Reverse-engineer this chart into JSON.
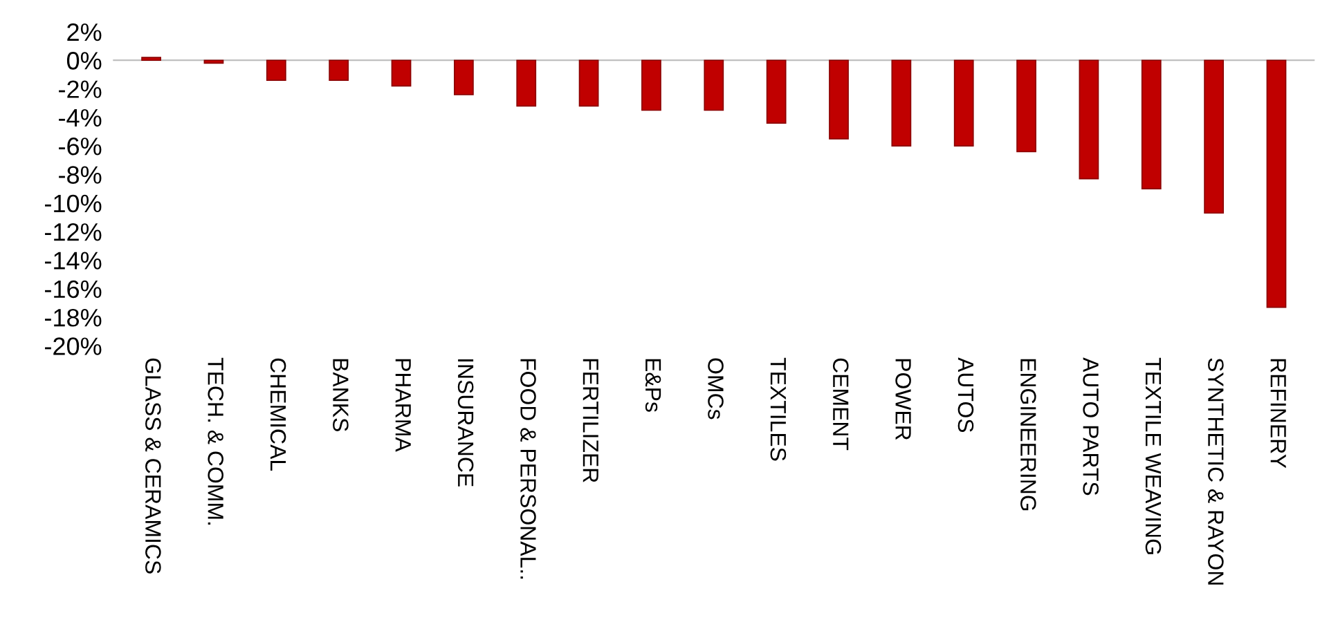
{
  "chart_data": {
    "type": "bar",
    "categories": [
      "GLASS & CERAMICS",
      "TECH. & COMM.",
      "CHEMICAL",
      "BANKS",
      "PHARMA",
      "INSURANCE",
      "FOOD & PERSONAL..",
      "FERTILIZER",
      "E&Ps",
      "OMCs",
      "TEXTILES",
      "CEMENT",
      "POWER",
      "AUTOS",
      "ENGINEERING",
      "AUTO PARTS",
      "TEXTILE WEAVING",
      "SYNTHETIC & RAYON",
      "REFINERY"
    ],
    "values": [
      0.2,
      -0.2,
      -1.4,
      -1.4,
      -1.8,
      -2.4,
      -3.2,
      -3.2,
      -3.5,
      -3.5,
      -4.4,
      -5.5,
      -6.0,
      -6.0,
      -6.4,
      -8.3,
      -9.0,
      -10.7,
      -17.3
    ],
    "color": "#c00000",
    "ylim": [
      -20,
      2
    ],
    "yticks": [
      {
        "value": 2,
        "label": "2%"
      },
      {
        "value": 0,
        "label": "0%"
      },
      {
        "value": -2,
        "label": "-2%"
      },
      {
        "value": -4,
        "label": "-4%"
      },
      {
        "value": -6,
        "label": "-6%"
      },
      {
        "value": -8,
        "label": "-8%"
      },
      {
        "value": -10,
        "label": "-10%"
      },
      {
        "value": -12,
        "label": "-12%"
      },
      {
        "value": -14,
        "label": "-14%"
      },
      {
        "value": -16,
        "label": "-16%"
      },
      {
        "value": -18,
        "label": "-18%"
      },
      {
        "value": -20,
        "label": "-20%"
      }
    ]
  }
}
